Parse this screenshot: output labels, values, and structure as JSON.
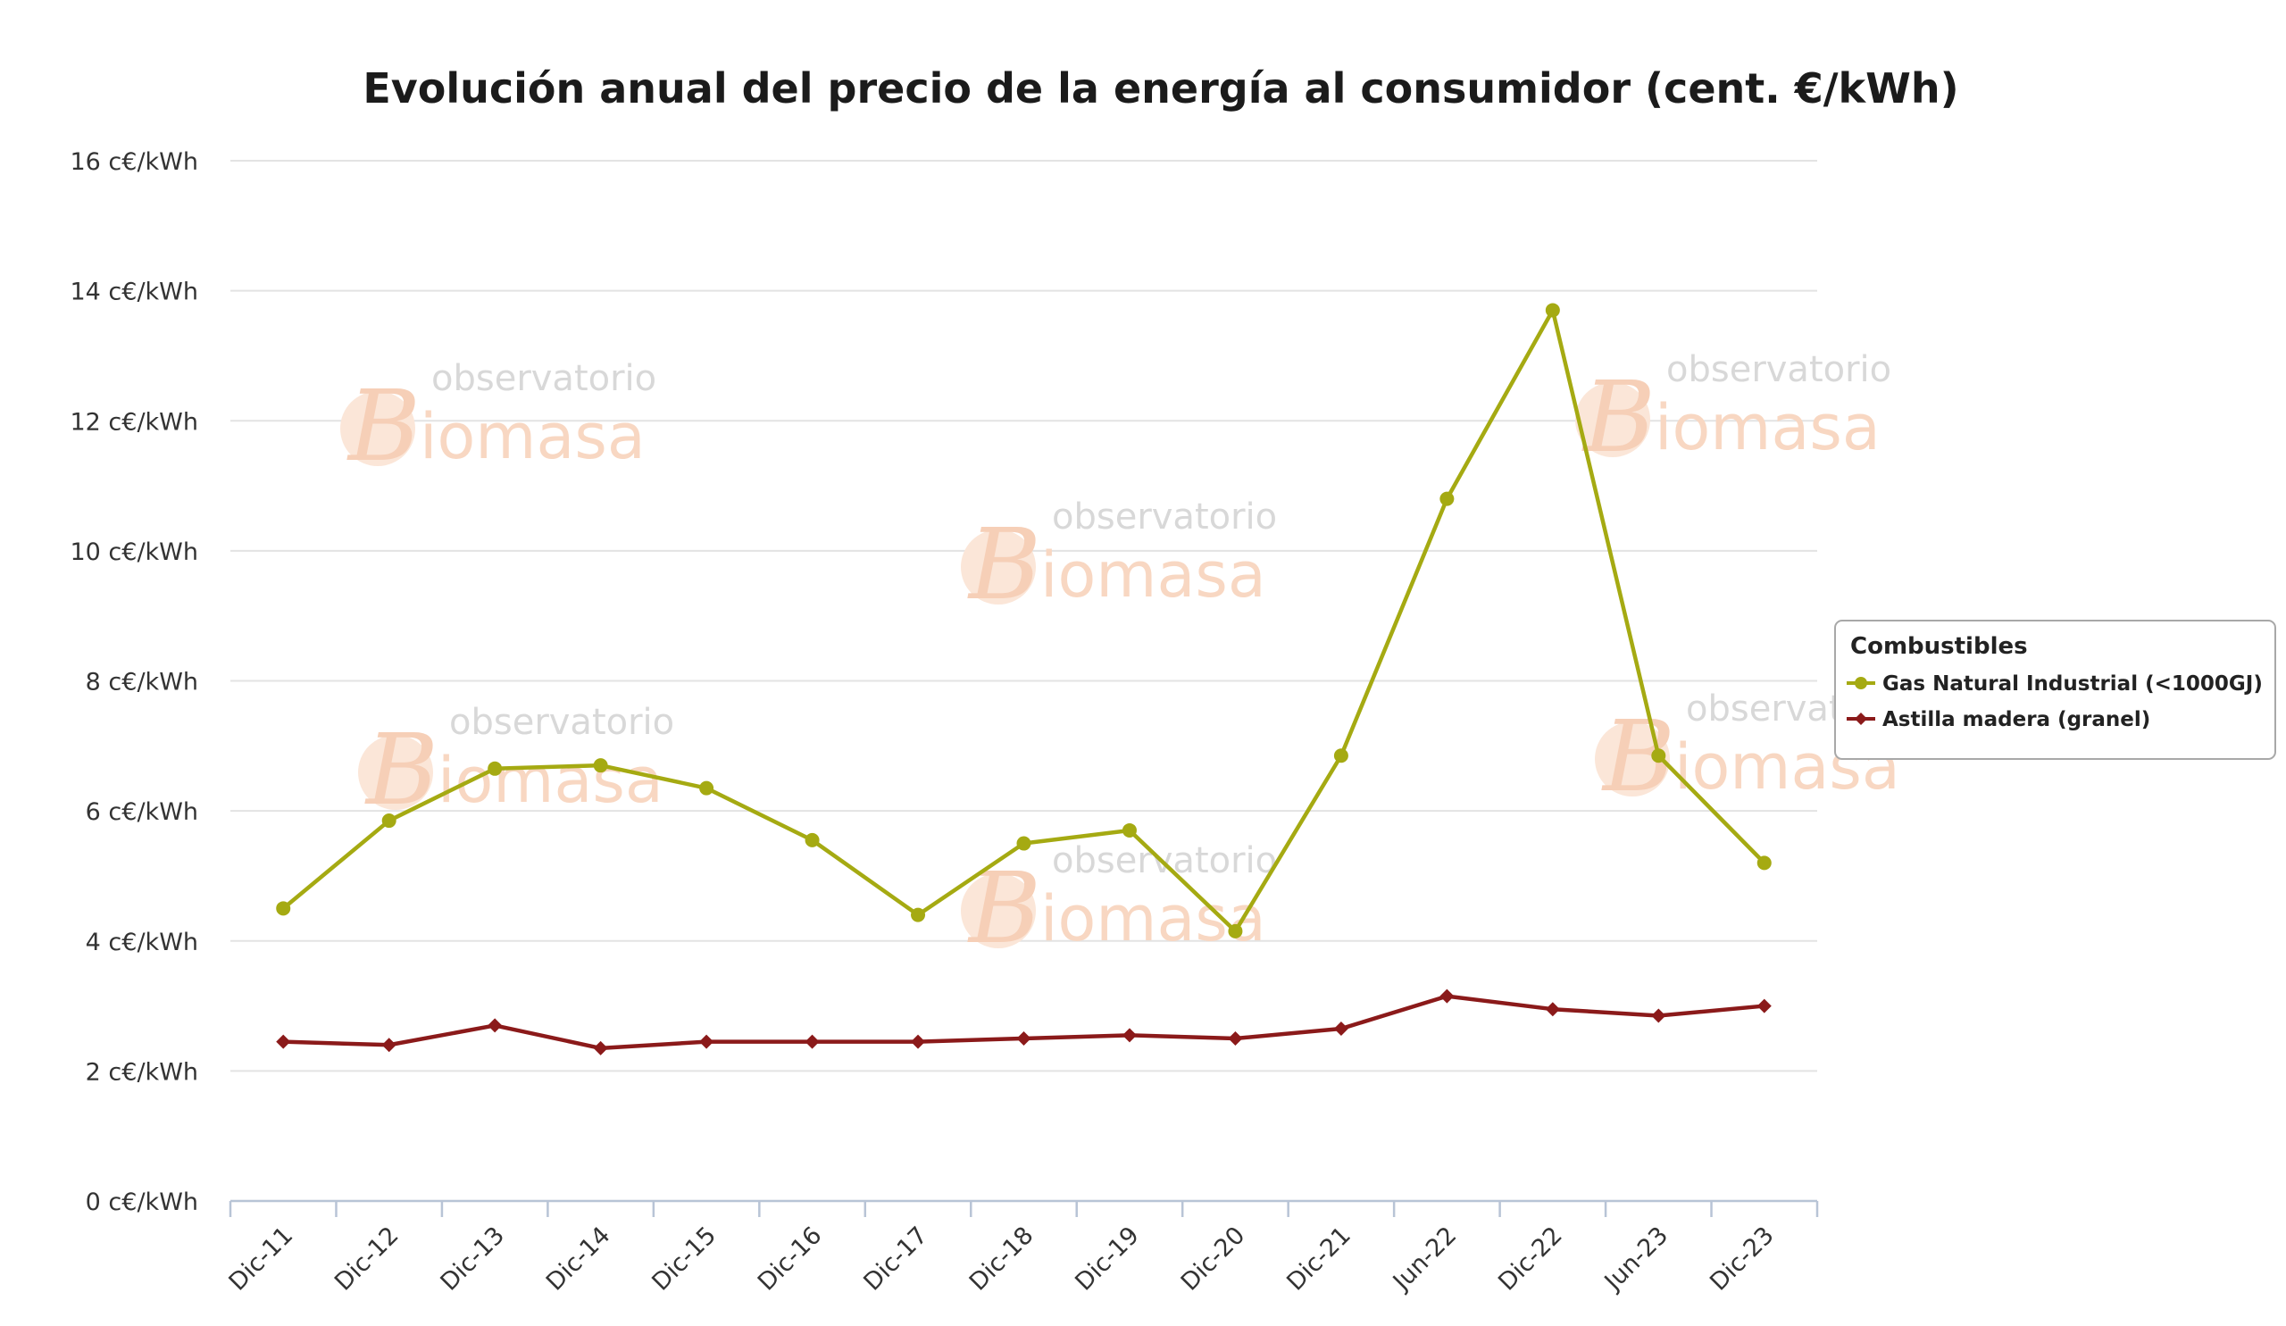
{
  "chart_data": {
    "type": "line",
    "title": "Evolución anual del precio de la energía al consumidor (cent. €/kWh)",
    "xlabel": "",
    "ylabel": "",
    "categories": [
      "Dic-11",
      "Dic-12",
      "Dic-13",
      "Dic-14",
      "Dic-15",
      "Dic-16",
      "Dic-17",
      "Dic-18",
      "Dic-19",
      "Dic-20",
      "Dic-21",
      "Jun-22",
      "Dic-22",
      "Jun-23",
      "Dic-23"
    ],
    "ylim": [
      0,
      16
    ],
    "yticks": [
      0,
      2,
      4,
      6,
      8,
      10,
      12,
      14,
      16
    ],
    "ytick_labels": [
      "0 c€/kWh",
      "2 c€/kWh",
      "4 c€/kWh",
      "6 c€/kWh",
      "8 c€/kWh",
      "10 c€/kWh",
      "12 c€/kWh",
      "14 c€/kWh",
      "16 c€/kWh"
    ],
    "grid": true,
    "legend": {
      "title": "Combustibles",
      "position": "right"
    },
    "series": [
      {
        "name": "Gas Natural Industrial (<1000GJ)",
        "color": "#a5aa12",
        "marker": "circle",
        "values": [
          4.5,
          5.85,
          6.65,
          6.7,
          6.35,
          5.55,
          4.4,
          5.5,
          5.7,
          4.15,
          6.85,
          10.8,
          13.7,
          6.85,
          5.2
        ]
      },
      {
        "name": "Astilla madera (granel)",
        "color": "#8b1a1a",
        "marker": "diamond",
        "values": [
          2.45,
          2.4,
          2.7,
          2.35,
          2.45,
          2.45,
          2.45,
          2.5,
          2.55,
          2.5,
          2.65,
          3.15,
          2.95,
          2.85,
          3.0
        ]
      }
    ]
  },
  "watermark": {
    "line1": "observatorio",
    "line2": "iomasa",
    "letter": "B"
  }
}
